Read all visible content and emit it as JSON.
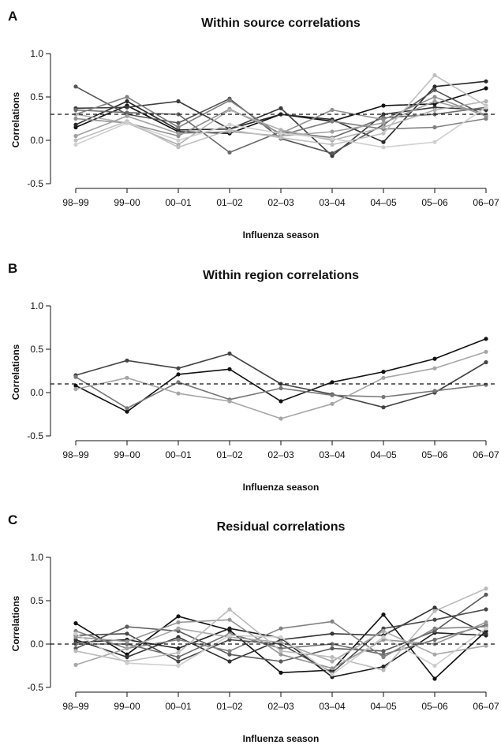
{
  "chart_data": [
    {
      "type": "line",
      "panel_letter": "A",
      "title": "Within source correlations",
      "xlabel": "Influenza season",
      "ylabel": "Correlations",
      "categories": [
        "98–99",
        "99–00",
        "00–01",
        "01–02",
        "02–03",
        "03–04",
        "04–05",
        "05–06",
        "06–07"
      ],
      "yticks": [
        "1.0",
        "0.5",
        "0.0",
        "-0.5"
      ],
      "ylim": [
        -0.5,
        1.0
      ],
      "reference_line": 0.3,
      "grid": false,
      "series": [
        {
          "color": "#111111",
          "values": [
            0.15,
            0.4,
            0.1,
            0.08,
            0.3,
            0.22,
            0.4,
            0.42,
            0.6
          ]
        },
        {
          "color": "#2a2a2a",
          "values": [
            0.18,
            0.45,
            0.12,
            0.13,
            0.3,
            0.24,
            -0.02,
            0.62,
            0.68
          ]
        },
        {
          "color": "#3a3a3a",
          "values": [
            0.37,
            0.38,
            0.45,
            0.13,
            0.37,
            -0.18,
            0.3,
            0.38,
            0.35
          ]
        },
        {
          "color": "#555555",
          "values": [
            0.62,
            0.3,
            0.2,
            0.48,
            0.02,
            -0.15,
            0.18,
            0.58,
            0.28
          ]
        },
        {
          "color": "#6a6a6a",
          "values": [
            0.35,
            0.32,
            0.3,
            -0.14,
            0.1,
            0.03,
            0.26,
            0.3,
            0.38
          ]
        },
        {
          "color": "#808080",
          "values": [
            0.3,
            0.5,
            0.15,
            0.46,
            0.06,
            0.22,
            0.13,
            0.15,
            0.25
          ]
        },
        {
          "color": "#909090",
          "values": [
            0.25,
            0.2,
            0.05,
            0.36,
            0.08,
            0.35,
            0.24,
            0.5,
            0.28
          ]
        },
        {
          "color": "#a0a0a0",
          "values": [
            0.05,
            0.28,
            0.08,
            0.1,
            0.05,
            0.1,
            0.2,
            0.45,
            0.3
          ]
        },
        {
          "color": "#b0b0b0",
          "values": [
            0.3,
            0.2,
            -0.05,
            0.35,
            0.12,
            0.0,
            0.15,
            0.35,
            0.45
          ]
        },
        {
          "color": "#c0c0c0",
          "values": [
            0.0,
            0.22,
            -0.08,
            0.12,
            0.03,
            -0.05,
            0.08,
            0.75,
            0.4
          ]
        },
        {
          "color": "#d0d0d0",
          "values": [
            -0.05,
            0.2,
            0.0,
            0.18,
            0.08,
            0.02,
            -0.08,
            -0.02,
            0.38
          ]
        }
      ]
    },
    {
      "type": "line",
      "panel_letter": "B",
      "title": "Within region correlations",
      "xlabel": "Influenza season",
      "ylabel": "Correlations",
      "categories": [
        "98–99",
        "99–00",
        "00–01",
        "01–02",
        "02–03",
        "03–04",
        "04–05",
        "05–06",
        "06–07"
      ],
      "yticks": [
        "1.0",
        "0.5",
        "0.0",
        "-0.5"
      ],
      "ylim": [
        -0.5,
        1.0
      ],
      "reference_line": 0.1,
      "grid": false,
      "series": [
        {
          "color": "#111111",
          "values": [
            0.08,
            -0.22,
            0.21,
            0.27,
            -0.1,
            0.12,
            0.24,
            0.39,
            0.62
          ]
        },
        {
          "color": "#444444",
          "values": [
            0.2,
            0.37,
            0.28,
            0.45,
            0.1,
            -0.02,
            -0.17,
            0.0,
            0.35
          ]
        },
        {
          "color": "#777777",
          "values": [
            0.18,
            -0.18,
            0.12,
            -0.08,
            0.05,
            -0.03,
            -0.05,
            0.02,
            0.09
          ]
        },
        {
          "color": "#a6a6a6",
          "values": [
            0.04,
            0.17,
            -0.01,
            -0.1,
            -0.3,
            -0.13,
            0.17,
            0.28,
            0.47
          ]
        }
      ]
    },
    {
      "type": "line",
      "panel_letter": "C",
      "title": "Residual correlations",
      "xlabel": "Influenza season",
      "ylabel": "Correlations",
      "categories": [
        "98–99",
        "99–00",
        "00–01",
        "01–02",
        "02–03",
        "03–04",
        "04–05",
        "05–06",
        "06–07"
      ],
      "yticks": [
        "1.0",
        "0.5",
        "0.0",
        "-0.5"
      ],
      "ylim": [
        -0.5,
        1.0
      ],
      "reference_line": 0.0,
      "grid": false,
      "series": [
        {
          "color": "#111111",
          "values": [
            0.24,
            -0.12,
            0.32,
            0.16,
            -0.33,
            -0.3,
            0.34,
            -0.4,
            0.15
          ]
        },
        {
          "color": "#1f1f1f",
          "values": [
            0.02,
            0.05,
            -0.05,
            0.18,
            0.07,
            -0.38,
            -0.26,
            0.13,
            0.1
          ]
        },
        {
          "color": "#333333",
          "values": [
            0.05,
            -0.15,
            0.08,
            -0.2,
            0.05,
            0.12,
            0.1,
            0.42,
            0.12
          ]
        },
        {
          "color": "#474747",
          "values": [
            0.1,
            0.12,
            -0.2,
            0.05,
            0.0,
            -0.33,
            0.18,
            0.28,
            0.4
          ]
        },
        {
          "color": "#5a5a5a",
          "values": [
            -0.05,
            0.2,
            0.15,
            -0.12,
            -0.2,
            -0.05,
            -0.08,
            0.15,
            0.57
          ]
        },
        {
          "color": "#6e6e6e",
          "values": [
            0.0,
            0.0,
            -0.15,
            0.12,
            -0.05,
            0.0,
            -0.12,
            0.05,
            0.22
          ]
        },
        {
          "color": "#828282",
          "values": [
            0.15,
            -0.05,
            0.05,
            -0.08,
            0.18,
            0.26,
            -0.15,
            0.18,
            0.2
          ]
        },
        {
          "color": "#969696",
          "values": [
            0.08,
            0.03,
            0.25,
            0.28,
            -0.12,
            -0.28,
            0.05,
            0.0,
            0.25
          ]
        },
        {
          "color": "#a8a8a8",
          "values": [
            -0.24,
            -0.05,
            0.18,
            0.08,
            0.02,
            -0.2,
            0.15,
            -0.12,
            -0.02
          ]
        },
        {
          "color": "#bbbbbb",
          "values": [
            -0.08,
            -0.2,
            -0.1,
            0.4,
            -0.08,
            -0.15,
            -0.3,
            0.38,
            0.64
          ]
        },
        {
          "color": "#cecece",
          "values": [
            0.12,
            -0.22,
            -0.25,
            0.1,
            0.08,
            -0.35,
            0.08,
            -0.25,
            0.18
          ]
        }
      ]
    }
  ]
}
